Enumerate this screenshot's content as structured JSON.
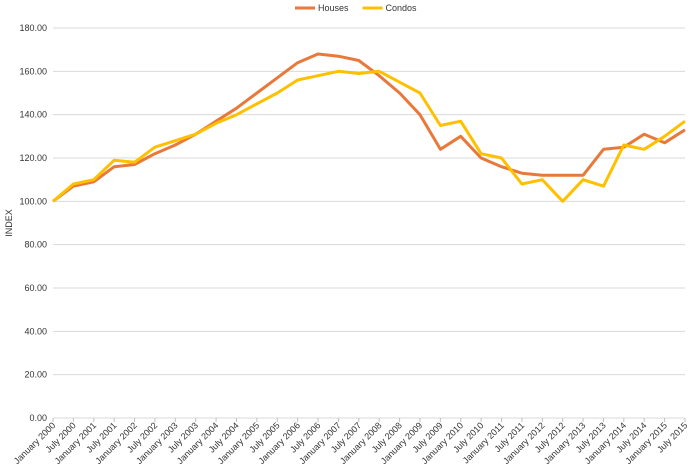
{
  "chart_data": {
    "type": "line",
    "y_label": "INDEX",
    "categories": [
      "January 2000",
      "July 2000",
      "January 2001",
      "July 2001",
      "January 2002",
      "July 2002",
      "January 2003",
      "July 2003",
      "January 2004",
      "July 2004",
      "January 2005",
      "July 2005",
      "January 2006",
      "July 2006",
      "January 2007",
      "July 2007",
      "January 2008",
      "July 2008",
      "January 2009",
      "July 2009",
      "January 2010",
      "July 2010",
      "January 2011",
      "July 2011",
      "January 2012",
      "July 2012",
      "January 2013",
      "July 2013",
      "January 2014",
      "July 2014",
      "January 2015",
      "July 2015"
    ],
    "series": [
      {
        "name": "Houses",
        "color": "#e8793a",
        "values": [
          100,
          107,
          109,
          116,
          117,
          122,
          126,
          131,
          137,
          143,
          150,
          157,
          164,
          168,
          167,
          165,
          158,
          150,
          140,
          124,
          130,
          120,
          116,
          113,
          112,
          112,
          112,
          124,
          125,
          131,
          127,
          133
        ]
      },
      {
        "name": "Condos",
        "color": "#ffc000",
        "values": [
          100,
          108,
          110,
          119,
          118,
          125,
          128,
          131,
          136,
          140,
          145,
          150,
          156,
          158,
          160,
          159,
          160,
          155,
          150,
          135,
          137,
          122,
          120,
          108,
          110,
          100,
          110,
          107,
          126,
          124,
          130,
          137
        ]
      }
    ],
    "ylim": [
      0,
      180
    ],
    "yticks": [
      {
        "value": 0,
        "label": "0.00"
      },
      {
        "value": 20,
        "label": "20.00"
      },
      {
        "value": 40,
        "label": "40.00"
      },
      {
        "value": 60,
        "label": "60.00"
      },
      {
        "value": 80,
        "label": "80.00"
      },
      {
        "value": 100,
        "label": "100.00"
      },
      {
        "value": 120,
        "label": "120.00"
      },
      {
        "value": 140,
        "label": "140.00"
      },
      {
        "value": 160,
        "label": "160.00"
      },
      {
        "value": 180,
        "label": "180.00"
      }
    ],
    "grid": true,
    "legend": "top"
  }
}
